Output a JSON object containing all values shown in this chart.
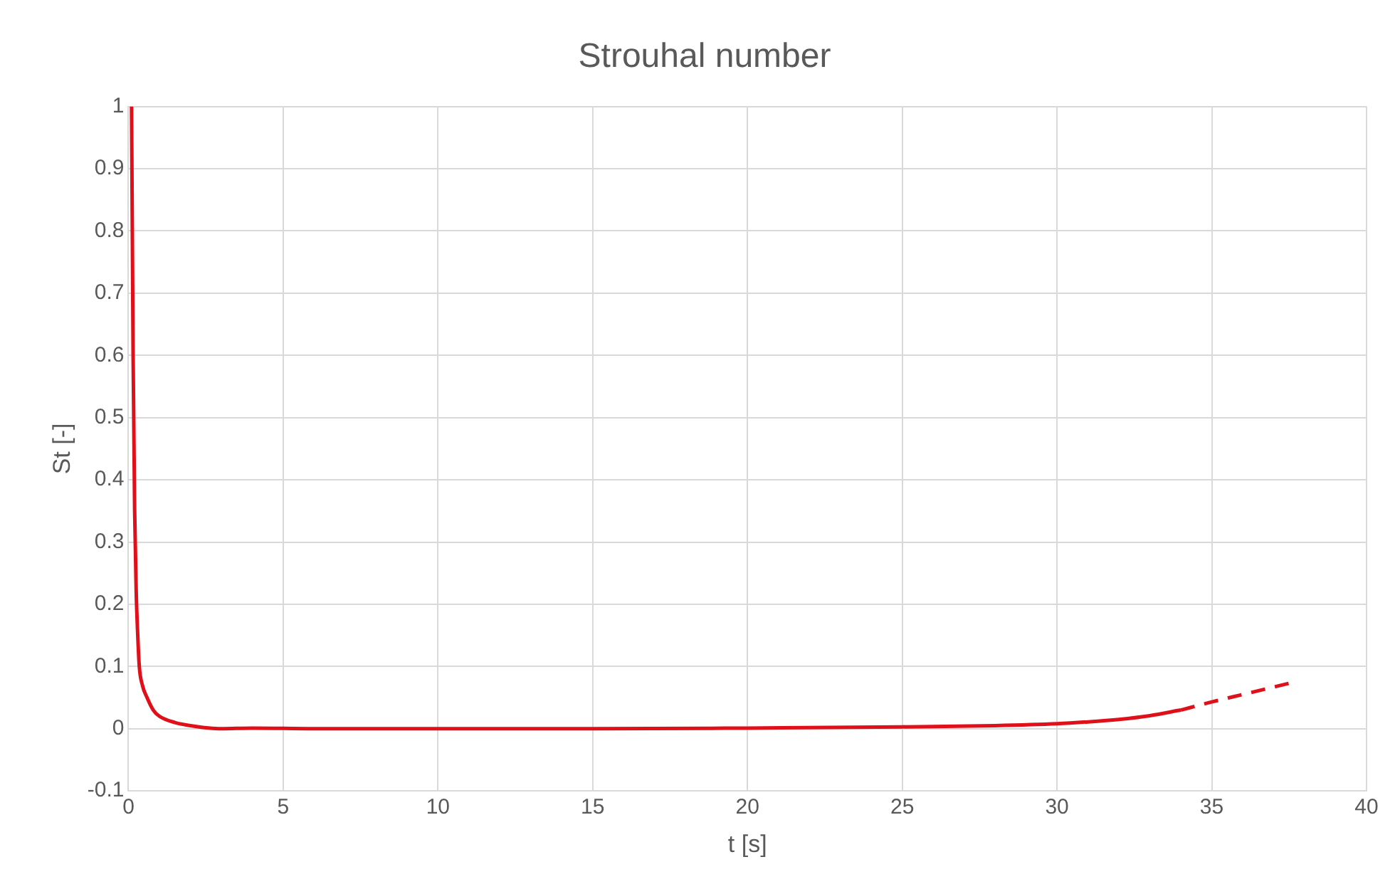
{
  "chart_data": {
    "type": "line",
    "title": "Strouhal number",
    "xlabel": "t [s]",
    "ylabel": "St [-]",
    "xlim": [
      0,
      40
    ],
    "xticks": [
      0,
      5,
      10,
      15,
      20,
      25,
      30,
      35,
      40
    ],
    "ylim": [
      -0.1,
      1
    ],
    "yticks": [
      -0.1,
      0,
      0.1,
      0.2,
      0.3,
      0.4,
      0.5,
      0.6,
      0.7,
      0.8,
      0.9,
      1
    ],
    "grid": true,
    "legend": false,
    "marker": "none",
    "series": [
      {
        "color": "#e0101a",
        "line_style": "solid",
        "x": [
          0.1,
          0.15,
          0.2,
          0.25,
          0.3,
          0.35,
          0.45,
          0.6,
          0.8,
          1,
          1.5,
          2,
          3,
          4,
          6,
          10,
          15,
          20,
          25,
          28,
          30,
          31,
          32,
          33,
          34
        ],
        "values": [
          1,
          0.6,
          0.35,
          0.22,
          0.15,
          0.1,
          0.07,
          0.05,
          0.03,
          0.02,
          0.01,
          0.005,
          0,
          0.001,
          0,
          0,
          0,
          0.001,
          0.003,
          0.005,
          0.008,
          0.011,
          0.015,
          0.021,
          0.03
        ]
      },
      {
        "color": "#e0101a",
        "line_style": "dashed",
        "x": [
          34,
          35,
          36,
          37.5
        ],
        "values": [
          0.03,
          0.043,
          0.055,
          0.073
        ]
      }
    ]
  }
}
